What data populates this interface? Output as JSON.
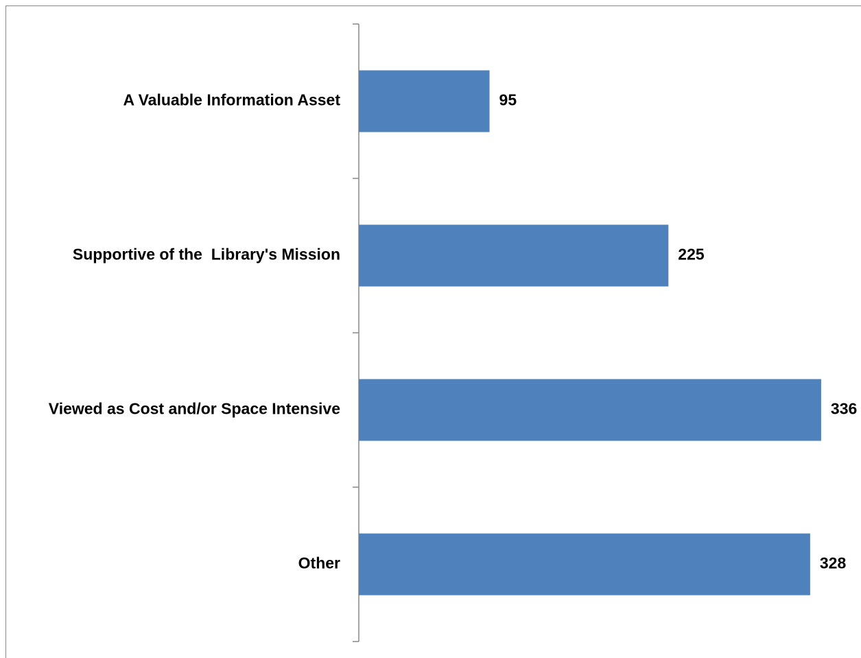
{
  "chart_data": {
    "type": "bar",
    "orientation": "horizontal",
    "categories": [
      "A Valuable Information Asset",
      "Supportive of the  Library's Mission",
      "Viewed as Cost and/or Space Intensive",
      "Other"
    ],
    "values": [
      95,
      225,
      336,
      328
    ],
    "color": "#4f81bd",
    "xlim": [
      0,
      350
    ]
  }
}
